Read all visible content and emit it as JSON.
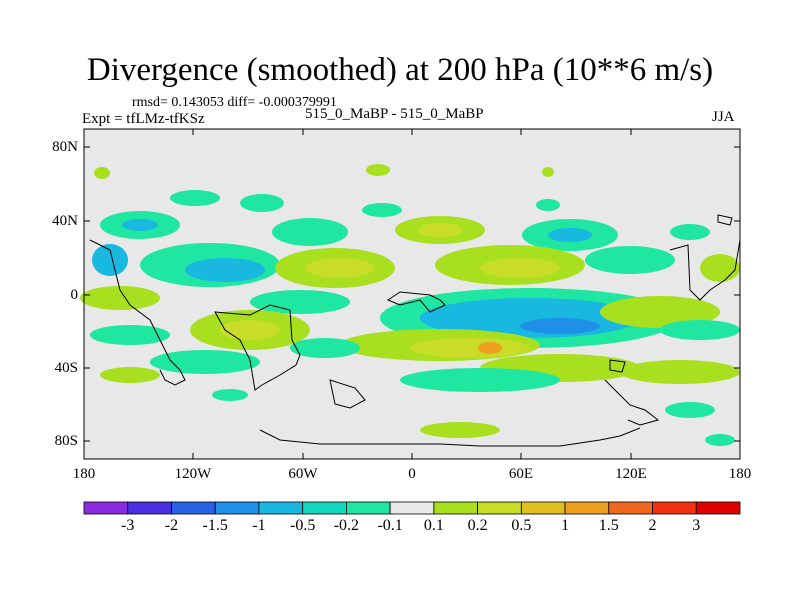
{
  "title": "Divergence (smoothed) at 200 hPa (10**6 m/s)",
  "stats_line": "rmsd= 0.143053 diff= -0.000379991",
  "expt_label": "Expt = tfLMz-tfKSz",
  "case_label": "515_0_MaBP - 515_0_MaBP",
  "season_label": "JJA",
  "y_ticks": [
    "80N",
    "40N",
    "0",
    "40S",
    "80S"
  ],
  "x_ticks": [
    "180",
    "120W",
    "60W",
    "0",
    "60E",
    "120E",
    "180"
  ],
  "colorbar": {
    "labels": [
      "-3",
      "-2",
      "-1.5",
      "-1",
      "-0.5",
      "-0.2",
      "-0.1",
      "0.1",
      "0.2",
      "0.5",
      "1",
      "1.5",
      "2",
      "3"
    ],
    "colors": [
      "#8a2be2",
      "#4b2fe0",
      "#2a62e6",
      "#1e90e8",
      "#18b8e0",
      "#12d6c0",
      "#1fe6a0",
      "#e8e8e8",
      "#a8e020",
      "#c8dc28",
      "#e0c020",
      "#f0a020",
      "#f06820",
      "#f03010",
      "#e00000"
    ]
  },
  "colors": {
    "background": "#e8e8e8",
    "cyan_band": "#18b8e0",
    "teal_band": "#12d6c0",
    "green_band": "#1fe6a0",
    "lime_band": "#a8e020",
    "olive_band": "#c8dc28",
    "gold_band": "#e0c020",
    "orange_band": "#f0a020"
  }
}
